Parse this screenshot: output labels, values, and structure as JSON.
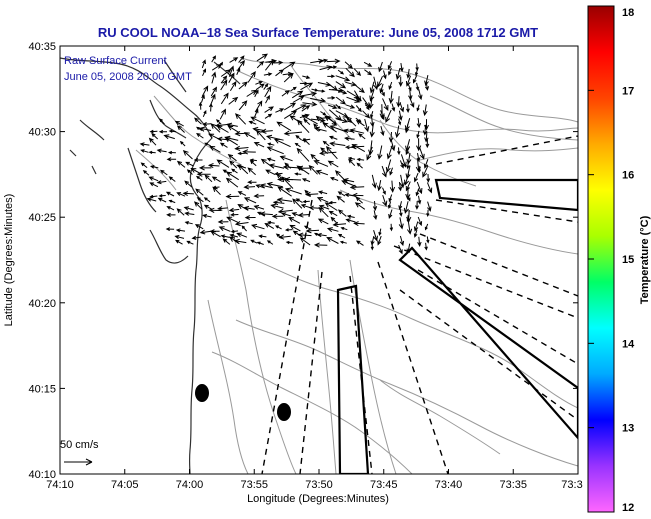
{
  "title": "RU COOL   NOAA–18  Sea Surface Temperature:  June 05, 2008 1712 GMT",
  "inset": {
    "line1": "Raw Surface Current",
    "line2": "June 05, 2008 20:00 GMT"
  },
  "scale_label": "50 cm/s",
  "chart_data": {
    "type": "map",
    "title": "RU COOL   NOAA–18  Sea Surface Temperature:  June 05, 2008 1712 GMT",
    "xlabel": "Longitude (Degrees:Minutes)",
    "ylabel": "Latitude (Degrees:Minutes)",
    "x_ticks": [
      "74:10",
      "74:05",
      "74:00",
      "73:55",
      "73:50",
      "73:45",
      "73:40",
      "73:35",
      "73:3"
    ],
    "y_ticks": [
      "40:35",
      "40:30",
      "40:25",
      "40:20",
      "40:15",
      "40:10"
    ],
    "xlim_minutes_west": [
      70,
      30
    ],
    "ylim_minutes_north": [
      10,
      35
    ],
    "colorbar": {
      "label": "Temperature (°C)",
      "range": [
        12,
        18
      ],
      "ticks": [
        "18",
        "17",
        "16",
        "15",
        "14",
        "13",
        "12"
      ],
      "colors": [
        "#ff66ff",
        "#9933ff",
        "#0000ff",
        "#00aaff",
        "#00ffff",
        "#00ff66",
        "#aaff00",
        "#ffff00",
        "#ffaa00",
        "#ff4400",
        "#ff0000",
        "#990000"
      ]
    }
  }
}
